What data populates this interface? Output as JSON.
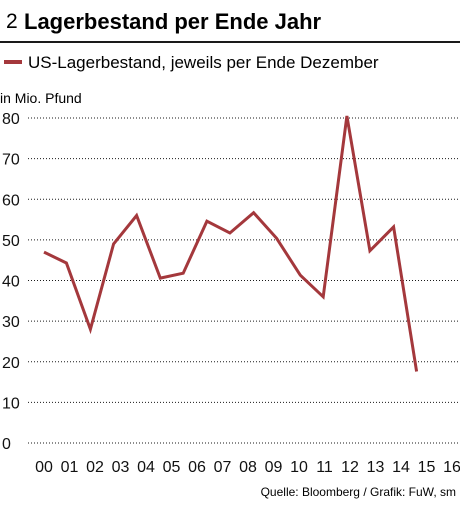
{
  "header": {
    "number": "2",
    "title": "Lagerbestand per Ende Jahr"
  },
  "legend": {
    "label": "US-Lagerbestand, jeweils per Ende Dezember"
  },
  "source": "Quelle: Bloomberg / Grafik: FuW, sm",
  "colors": {
    "series": "#a4383c",
    "grid": "#1a1a1a",
    "text": "#111111"
  },
  "chart_data": {
    "type": "line",
    "title": "Lagerbestand per Ende Jahr",
    "ylabel": "in Mio. Pfund",
    "xlabel": "",
    "ylim": [
      0,
      80
    ],
    "yticks": [
      0,
      10,
      20,
      30,
      40,
      50,
      60,
      70,
      80
    ],
    "grid": "horizontal, dotted",
    "legend_position": "top",
    "categories": [
      "00",
      "01",
      "02",
      "03",
      "04",
      "05",
      "06",
      "07",
      "08",
      "09",
      "10",
      "11",
      "12",
      "13",
      "14",
      "15",
      "16"
    ],
    "series": [
      {
        "name": "US-Lagerbestand, jeweils per Ende Dezember",
        "x": [
          0,
          0.88,
          1.82,
          2.73,
          3.63,
          4.56,
          5.46,
          6.39,
          7.29,
          8.22,
          9.12,
          10.05,
          10.95,
          11.88,
          12.78,
          13.71,
          14.61
        ],
        "values": [
          47,
          44.3,
          28,
          49,
          56,
          40.6,
          41.8,
          54.6,
          51.7,
          56.7,
          50.4,
          41.3,
          36,
          80.5,
          47.3,
          53.2,
          17.6
        ]
      }
    ]
  }
}
